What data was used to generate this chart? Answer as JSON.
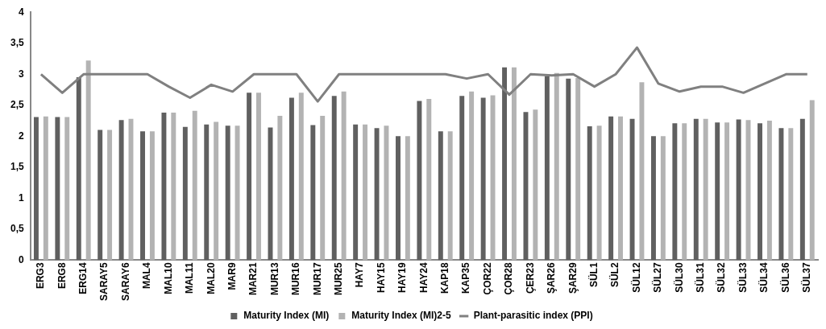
{
  "chart_data": {
    "type": "bar",
    "categories": [
      "ERG3",
      "ERG8",
      "ERG14",
      "SARAY5",
      "SARAY6",
      "MAL4",
      "MAL10",
      "MAL11",
      "MAL20",
      "MAR9",
      "MAR21",
      "MUR13",
      "MUR16",
      "MUR17",
      "MUR25",
      "HAY7",
      "HAY15",
      "HAY19",
      "HAY24",
      "KAP18",
      "KAP35",
      "ÇOR22",
      "ÇOR28",
      "ÇER23",
      "ŞAR26",
      "ŞAR29",
      "SÜL1",
      "SÜL2",
      "SÜL12",
      "SÜL27",
      "SÜL30",
      "SÜL31",
      "SÜL32",
      "SÜL33",
      "SÜL34",
      "SÜL36",
      "SÜL37"
    ],
    "series": [
      {
        "name": "Maturity Index (MI)",
        "color": "#606060",
        "values": [
          2.31,
          2.31,
          2.95,
          2.1,
          2.26,
          2.08,
          2.38,
          2.15,
          2.19,
          2.17,
          2.7,
          2.14,
          2.62,
          2.18,
          2.65,
          2.19,
          2.13,
          2.0,
          2.57,
          2.08,
          2.65,
          2.62,
          3.11,
          2.39,
          2.97,
          2.93,
          2.16,
          2.32,
          2.28,
          2.0,
          2.21,
          2.28,
          2.22,
          2.27,
          2.21,
          2.13,
          2.28
        ]
      },
      {
        "name": "Maturity Index (MI)2-5",
        "color": "#b3b3b3",
        "values": [
          2.32,
          2.31,
          3.22,
          2.1,
          2.28,
          2.08,
          2.38,
          2.41,
          2.23,
          2.17,
          2.7,
          2.33,
          2.7,
          2.33,
          2.72,
          2.19,
          2.17,
          2.0,
          2.6,
          2.08,
          2.72,
          2.66,
          3.11,
          2.43,
          3.02,
          2.94,
          2.17,
          2.32,
          2.87,
          2.0,
          2.21,
          2.28,
          2.22,
          2.26,
          2.25,
          2.13,
          2.58
        ]
      },
      {
        "name": "Plant-parasitic index (PPI)",
        "type": "line",
        "color": "#808080",
        "values": [
          3,
          2.7,
          3,
          3,
          3,
          3,
          2.8,
          2.62,
          2.83,
          2.72,
          3,
          3,
          3,
          2.56,
          3,
          3,
          3,
          3,
          3,
          3,
          2.93,
          3,
          2.67,
          3,
          2.98,
          3,
          2.8,
          3,
          3.43,
          2.85,
          2.72,
          2.8,
          2.8,
          2.7,
          2.85,
          3,
          3
        ]
      }
    ],
    "ylim": [
      0,
      4
    ],
    "yticks": [
      0,
      {
        "value": 0.5,
        "label": "0,5"
      },
      1,
      {
        "value": 1.5,
        "label": "1,5"
      },
      2,
      {
        "value": 2.5,
        "label": "2,5"
      },
      3,
      {
        "value": 3.5,
        "label": "3,5"
      },
      4
    ],
    "grid": false,
    "legend": "bottom",
    "marker": "none"
  }
}
